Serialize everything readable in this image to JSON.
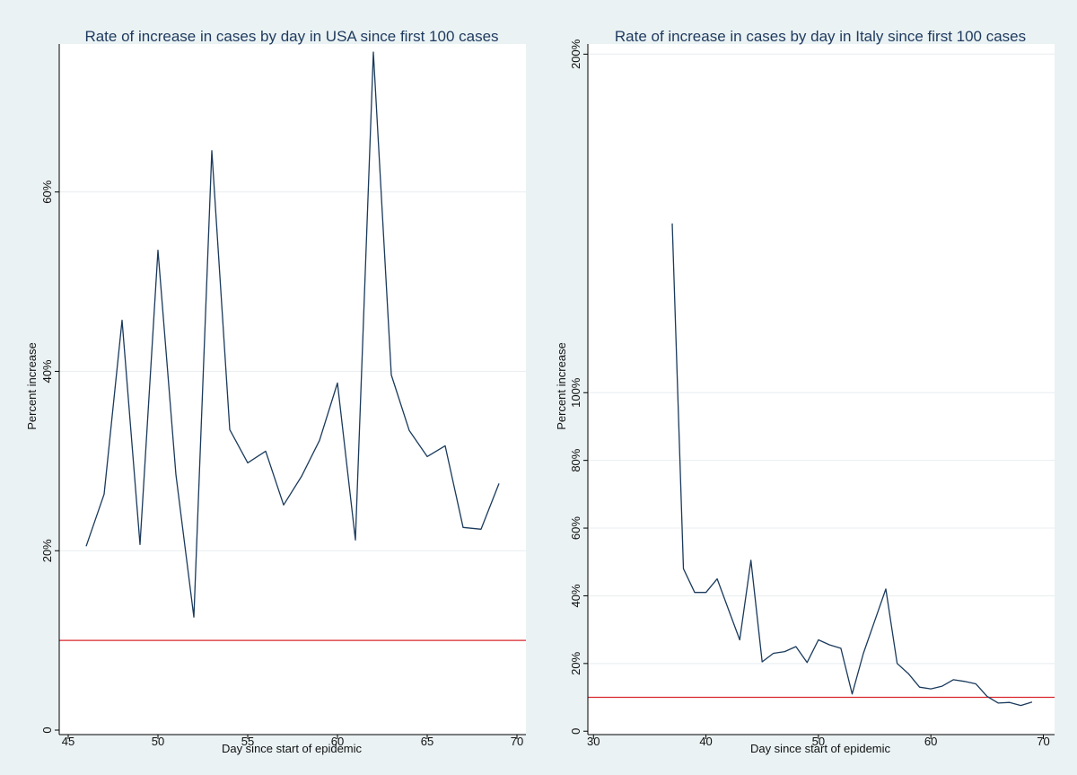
{
  "colors": {
    "background": "#eaf2f3",
    "plot_background": "#ffffff",
    "series_line": "#1a3a5c",
    "reference_line": "#d7262b",
    "title": "#1f3a5f"
  },
  "chart_data": [
    {
      "id": "usa",
      "type": "line",
      "title": "Rate of increase in cases by day in USA since first 100 cases",
      "xlabel": "Day since start of epidemic",
      "ylabel": "Percent increase",
      "xlim": [
        44.5,
        70.5
      ],
      "ylim": [
        -0.5,
        76.5
      ],
      "xticks": [
        45,
        50,
        55,
        60,
        65,
        70
      ],
      "xtick_labels": [
        "45",
        "50",
        "55",
        "60",
        "65",
        "70"
      ],
      "yticks": [
        0,
        20,
        40,
        60
      ],
      "ytick_labels": [
        "0",
        "20%",
        "40%",
        "60%"
      ],
      "grid": true,
      "reference_line": 10,
      "series": [
        {
          "name": "USA",
          "x": [
            46,
            47,
            48,
            49,
            50,
            51,
            52,
            53,
            54,
            55,
            56,
            57,
            58,
            59,
            60,
            61,
            62,
            63,
            64,
            65,
            66,
            67,
            68,
            69
          ],
          "y": [
            20.5,
            26.3,
            45.7,
            20.7,
            53.5,
            28.5,
            12.6,
            64.6,
            33.5,
            29.8,
            31.1,
            25.1,
            28.3,
            32.3,
            38.7,
            21.2,
            75.6,
            39.6,
            33.4,
            30.5,
            31.7,
            22.6,
            22.4,
            27.5
          ]
        }
      ]
    },
    {
      "id": "italy",
      "type": "line",
      "title": "Rate of increase in cases by day in Italy since first 100 cases",
      "xlabel": "Day since start of epidemic",
      "ylabel": "Percent increase",
      "xlim": [
        29.5,
        71
      ],
      "ylim": [
        -1,
        203
      ],
      "xticks": [
        30,
        40,
        50,
        60,
        70
      ],
      "xtick_labels": [
        "30",
        "40",
        "50",
        "60",
        "70"
      ],
      "yticks": [
        0,
        20,
        40,
        60,
        80,
        100,
        200
      ],
      "ytick_labels": [
        "0",
        "20%",
        "40%",
        "60%",
        "80%",
        "100%",
        "200%"
      ],
      "grid": true,
      "reference_line": 10,
      "series": [
        {
          "name": "Italy",
          "x": [
            37,
            38,
            39,
            40,
            41,
            42,
            43,
            44,
            45,
            46,
            47,
            48,
            49,
            50,
            51,
            52,
            53,
            54,
            55,
            56,
            57,
            58,
            59,
            60,
            61,
            62,
            63,
            64,
            65,
            66,
            67,
            68,
            69
          ],
          "y": [
            150,
            48,
            41,
            41,
            45,
            36,
            27,
            50.5,
            20.5,
            23,
            23.5,
            25,
            20.3,
            27,
            25.5,
            24.5,
            11,
            23,
            32.5,
            42,
            20,
            17,
            13,
            12.5,
            13.3,
            15.2,
            14.7,
            14,
            10.3,
            8.3,
            8.5,
            7.6,
            8.6
          ]
        }
      ]
    }
  ]
}
